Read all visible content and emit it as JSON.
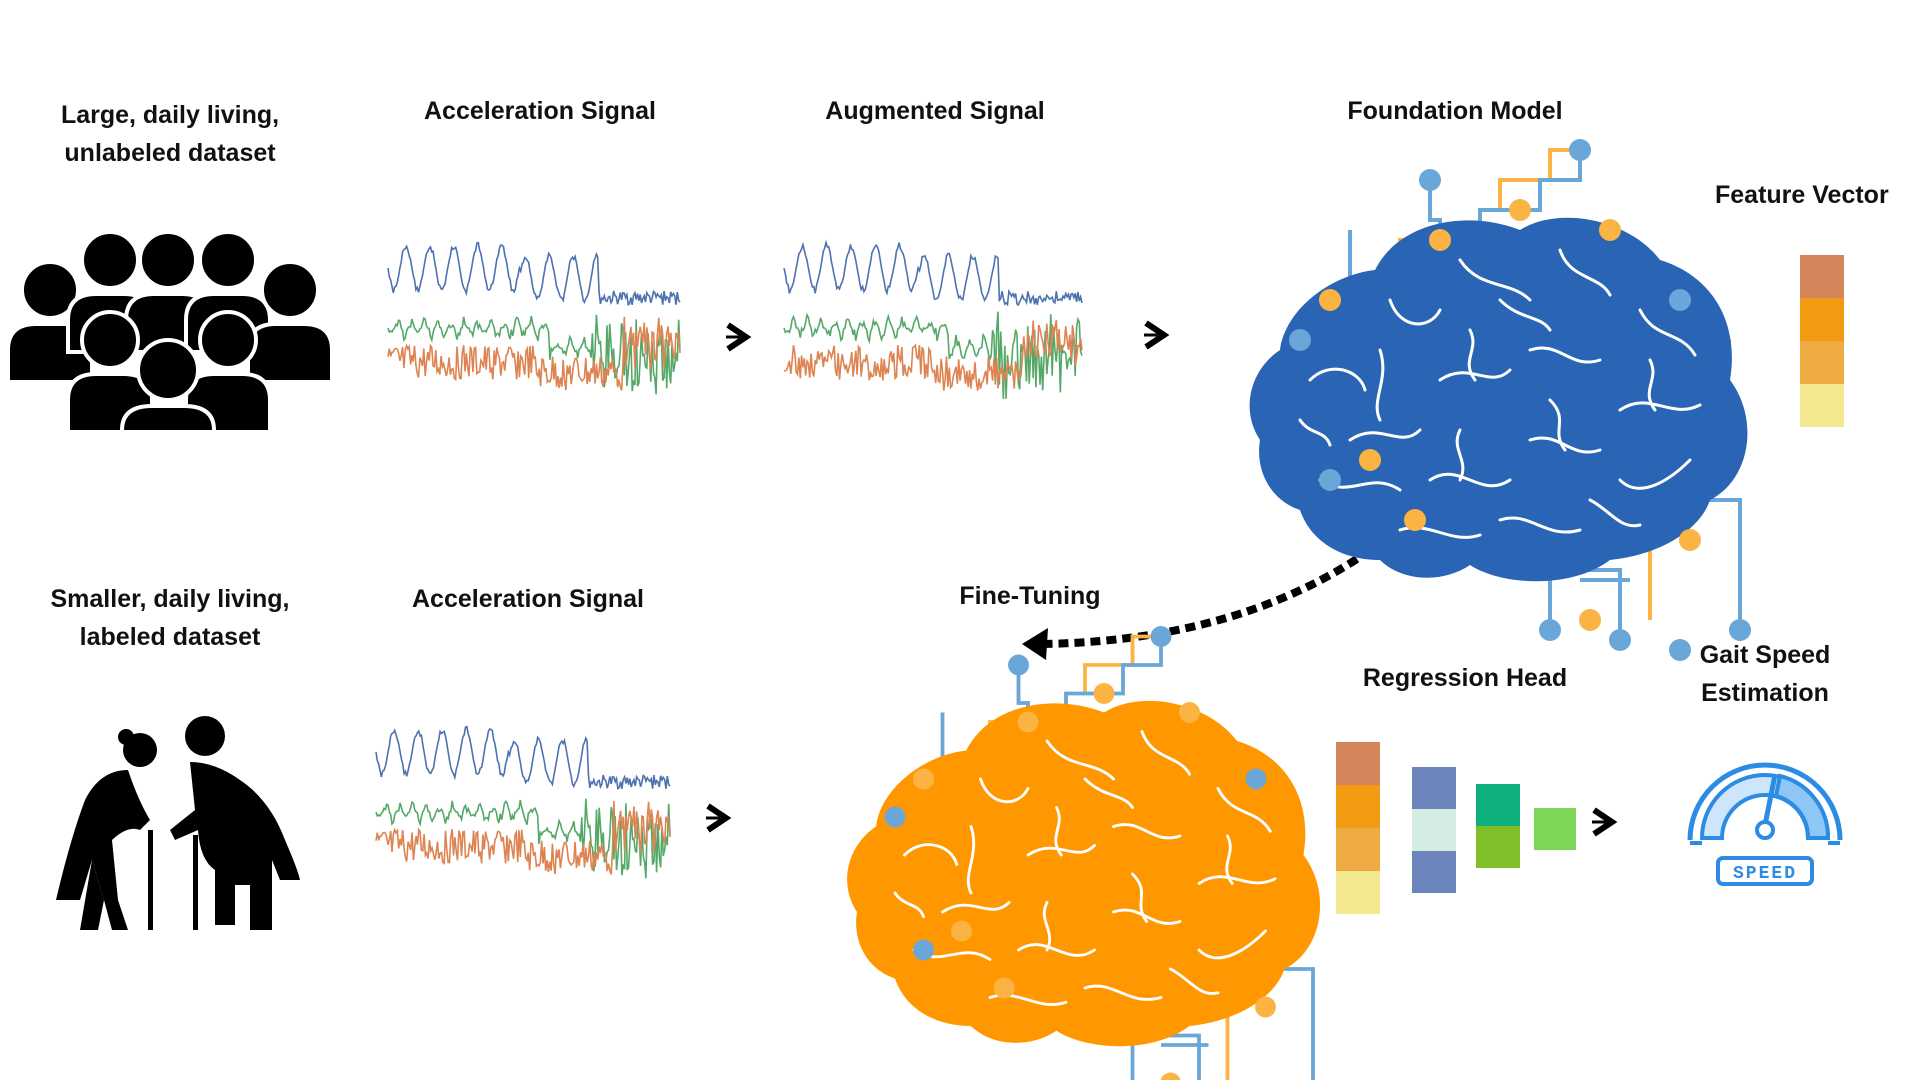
{
  "top_row": {
    "dataset_label": [
      "Large, daily living,",
      "unlabeled dataset"
    ],
    "signal_label": "Acceleration Signal",
    "augmented_label": "Augmented Signal",
    "model_label": "Foundation Model",
    "feature_label": "Feature Vector",
    "feature_colors": [
      "#d4855a",
      "#f29a12",
      "#edab42",
      "#f4e991"
    ]
  },
  "bottom_row": {
    "dataset_label": [
      "Smaller, daily living,",
      "labeled dataset"
    ],
    "signal_label": "Acceleration Signal",
    "finetune_label": "Fine-Tuning",
    "head_label": "Regression Head",
    "output_label": [
      "Gait Speed",
      "Estimation"
    ],
    "speed_badge": "SPEED",
    "head_layers": [
      [
        "#d4855a",
        "#f29a12",
        "#edab42",
        "#f4e991"
      ],
      [
        "#6b84bb",
        "#d4ece4",
        "#6b84bb"
      ],
      [
        "#0eb07e",
        "#80be2a"
      ],
      [
        "#7dd657"
      ]
    ]
  },
  "colors": {
    "signal_blue": "#4c72b0",
    "signal_green": "#55a868",
    "signal_orange": "#dd8452",
    "brain_blue": "#2a65b5",
    "brain_orange": "#ff9800",
    "node_blue": "#6aa6d8",
    "node_orange": "#fbb444",
    "icon_black": "#000000",
    "gauge_blue": "#2c8be3"
  }
}
